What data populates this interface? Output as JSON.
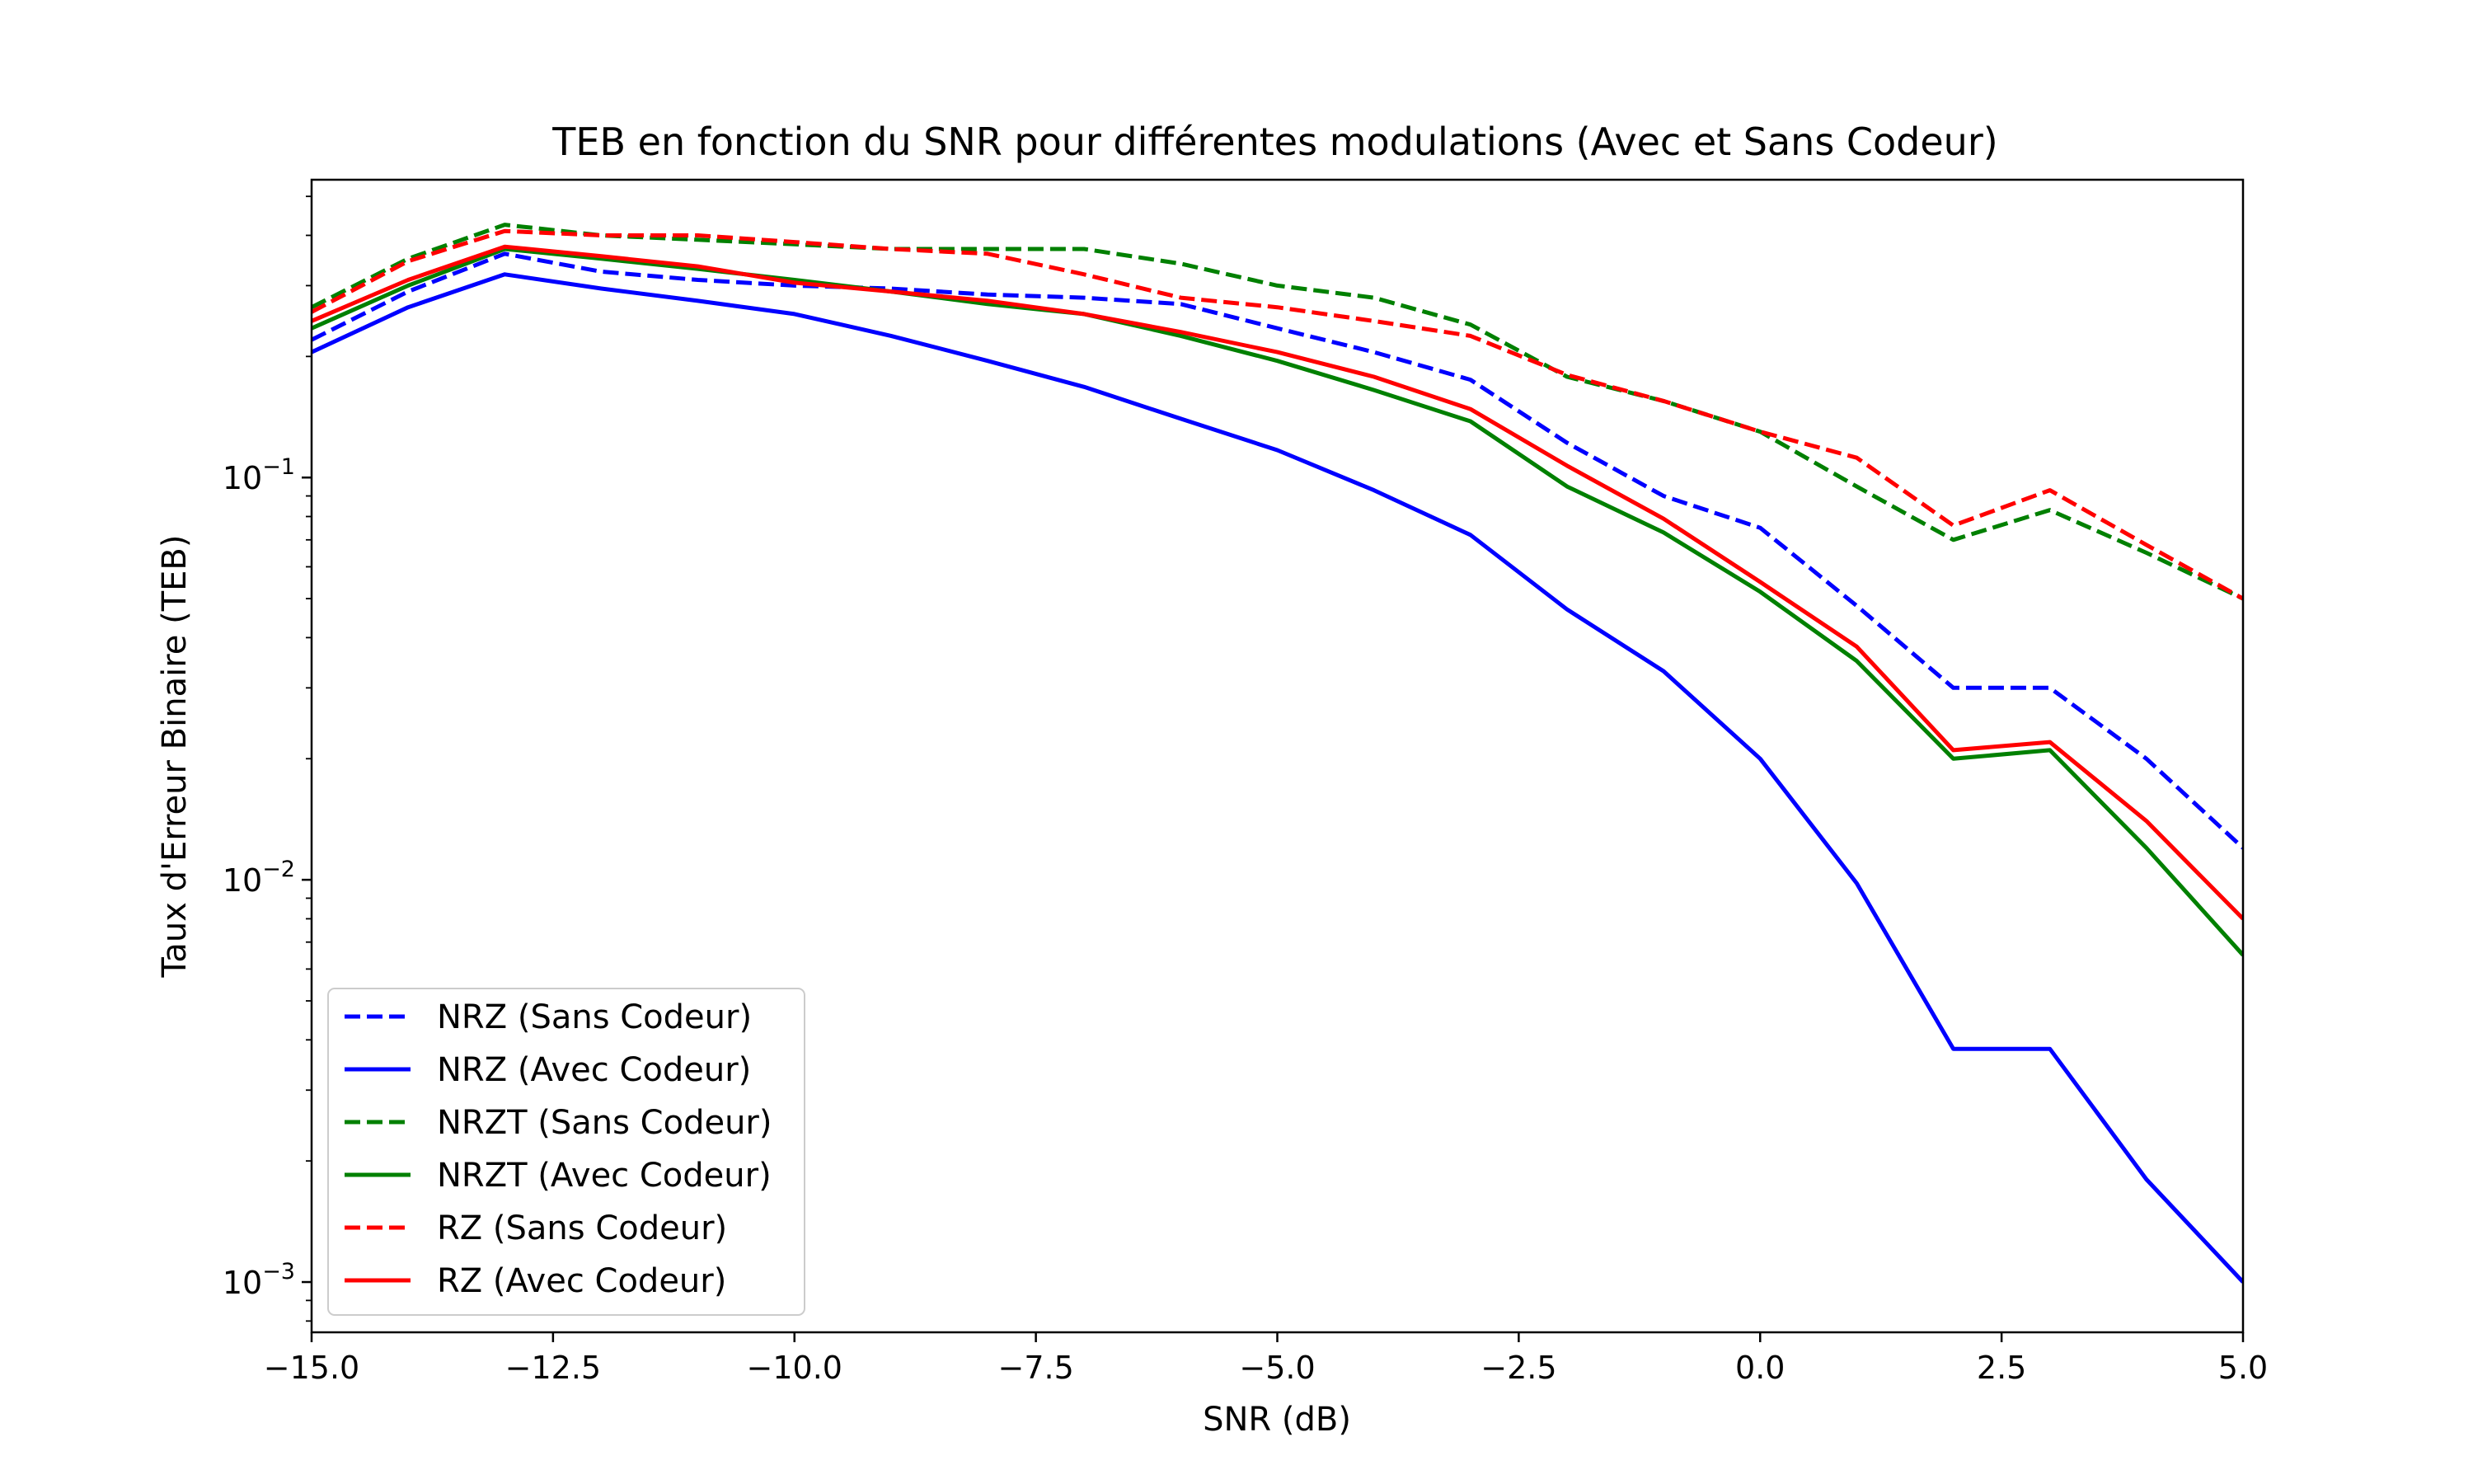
{
  "chart_data": {
    "type": "line",
    "title": "TEB en fonction du SNR pour différentes modulations (Avec et Sans Codeur)",
    "xlabel": "SNR (dB)",
    "ylabel": "Taux d'Erreur Binaire (TEB)",
    "xlim": [
      -15,
      5
    ],
    "ylim": [
      0.00075,
      0.55
    ],
    "yscale": "log",
    "grid": false,
    "legend_position": "lower-left",
    "x_ticks": [
      "−15.0",
      "−12.5",
      "−10.0",
      "−7.5",
      "−5.0",
      "−2.5",
      "0.0",
      "2.5",
      "5.0"
    ],
    "x_tick_values": [
      -15,
      -12.5,
      -10,
      -7.5,
      -5,
      -2.5,
      0,
      2.5,
      5
    ],
    "y_ticks": [
      {
        "value": 0.1,
        "base": "10",
        "exp": "−1"
      },
      {
        "value": 0.01,
        "base": "10",
        "exp": "−2"
      },
      {
        "value": 0.001,
        "base": "10",
        "exp": "−3"
      }
    ],
    "x": [
      -15,
      -14,
      -13,
      -12,
      -11,
      -10,
      -9,
      -8,
      -7,
      -6,
      -5,
      -4,
      -3,
      -2,
      -1,
      0,
      1,
      2,
      3,
      4,
      5
    ],
    "series": [
      {
        "name": "NRZ (Sans Codeur)",
        "color": "#0000ff",
        "dash": "dashed",
        "values": [
          0.22,
          0.29,
          0.36,
          0.325,
          0.31,
          0.3,
          0.295,
          0.285,
          0.28,
          0.27,
          0.235,
          0.205,
          0.175,
          0.122,
          0.09,
          0.075,
          0.048,
          0.03,
          0.03,
          0.02,
          0.012
        ]
      },
      {
        "name": "NRZ (Avec Codeur)",
        "color": "#0000ff",
        "dash": "solid",
        "values": [
          0.205,
          0.265,
          0.32,
          0.295,
          0.275,
          0.255,
          0.225,
          0.195,
          0.168,
          0.14,
          0.117,
          0.093,
          0.072,
          0.047,
          0.033,
          0.02,
          0.0098,
          0.0038,
          0.0038,
          0.0018,
          0.001
        ]
      },
      {
        "name": "NRZT (Sans Codeur)",
        "color": "#008000",
        "dash": "dashed",
        "values": [
          0.265,
          0.35,
          0.425,
          0.4,
          0.39,
          0.38,
          0.37,
          0.37,
          0.37,
          0.34,
          0.3,
          0.28,
          0.24,
          0.178,
          0.155,
          0.13,
          0.095,
          0.07,
          0.083,
          0.065,
          0.05
        ]
      },
      {
        "name": "NRZT (Avec Codeur)",
        "color": "#008000",
        "dash": "solid",
        "values": [
          0.235,
          0.3,
          0.37,
          0.35,
          0.33,
          0.31,
          0.29,
          0.27,
          0.255,
          0.225,
          0.195,
          0.165,
          0.138,
          0.095,
          0.073,
          0.052,
          0.035,
          0.02,
          0.021,
          0.012,
          0.0065
        ]
      },
      {
        "name": "RZ (Sans Codeur)",
        "color": "#ff0000",
        "dash": "dashed",
        "values": [
          0.258,
          0.345,
          0.41,
          0.4,
          0.4,
          0.385,
          0.37,
          0.36,
          0.32,
          0.28,
          0.265,
          0.245,
          0.225,
          0.18,
          0.155,
          0.13,
          0.112,
          0.076,
          0.093,
          0.068,
          0.05
        ]
      },
      {
        "name": "RZ (Avec Codeur)",
        "color": "#ff0000",
        "dash": "solid",
        "values": [
          0.245,
          0.31,
          0.375,
          0.355,
          0.335,
          0.305,
          0.29,
          0.275,
          0.255,
          0.23,
          0.205,
          0.178,
          0.148,
          0.107,
          0.079,
          0.055,
          0.038,
          0.021,
          0.022,
          0.014,
          0.008
        ]
      }
    ]
  }
}
